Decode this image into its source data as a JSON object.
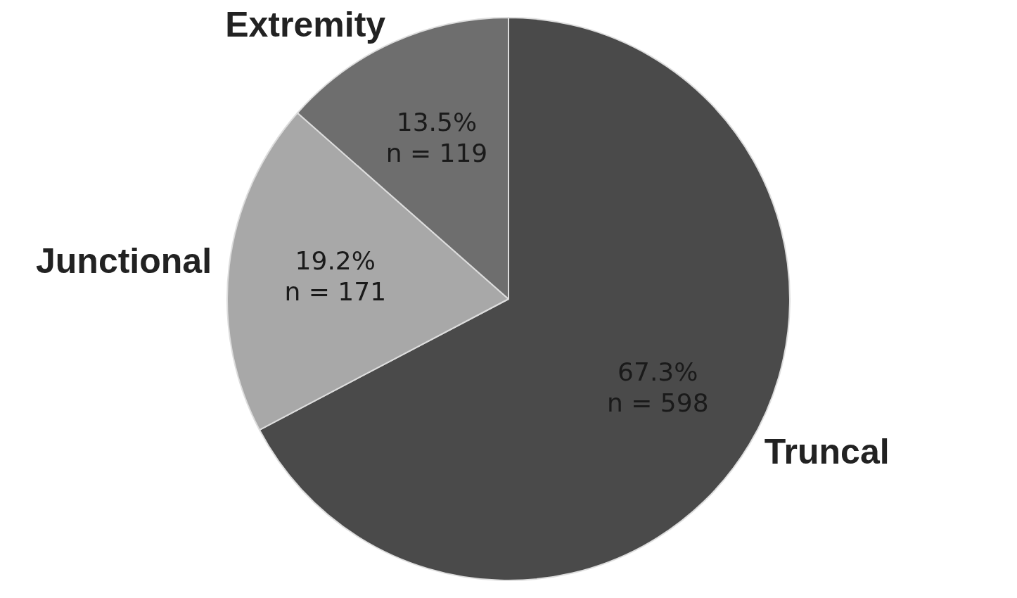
{
  "chart_data": {
    "type": "pie",
    "categories": [
      "Truncal",
      "Junctional",
      "Extremity"
    ],
    "values": [
      67.3,
      19.2,
      13.5
    ],
    "colors": [
      "#4a4a4a",
      "#a8a8a8",
      "#6e6e6e"
    ],
    "value_labels": [
      "67.3%\nn = 598",
      "19.2%\nn = 171",
      "13.5%\nn = 119"
    ],
    "legend": false
  }
}
